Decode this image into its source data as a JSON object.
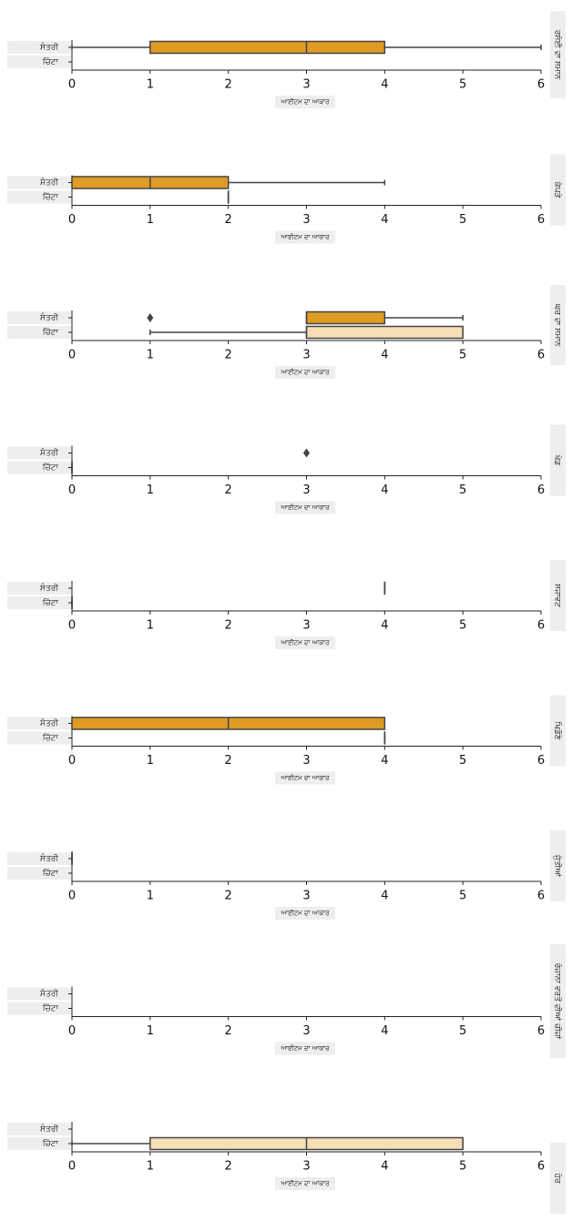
{
  "chart_data": [
    {
      "type": "box",
      "title": "ਰਸੋਈ ਦਾ ਸਮਾਨ",
      "categories": [
        "ਸੰਤਰੀ",
        "ਚਿੱਟਾ"
      ],
      "colors": [
        "#e09b24",
        "#f5dfb6"
      ],
      "xlabel": "ਆਈਟਮ ਦਾ ਆਕਾਰ",
      "xlim": [
        0,
        6
      ],
      "xticks": [
        0,
        1,
        2,
        3,
        4,
        5,
        6
      ],
      "boxes": [
        {
          "min": 0,
          "q1": 1,
          "median": 3,
          "q3": 4,
          "max": 6,
          "outliers": []
        },
        null
      ]
    },
    {
      "type": "box",
      "title": "ਕੱਪੜੇ",
      "categories": [
        "ਸੰਤਰੀ",
        "ਚਿੱਟਾ"
      ],
      "colors": [
        "#e09b24",
        "#f5dfb6"
      ],
      "xlabel": "ਆਈਟਮ ਦਾ ਆਕਾਰ",
      "xlim": [
        0,
        6
      ],
      "xticks": [
        0,
        1,
        2,
        3,
        4,
        5,
        6
      ],
      "boxes": [
        {
          "min": 0,
          "q1": 0,
          "median": 1,
          "q3": 2,
          "max": 4,
          "outliers": []
        },
        {
          "min": 2,
          "q1": 2,
          "median": 2,
          "q3": 2,
          "max": 2,
          "outliers": []
        }
      ]
    },
    {
      "type": "box",
      "title": "ਘਰ ਦਾ ਸਮਾਨ",
      "categories": [
        "ਸੰਤਰੀ",
        "ਚਿੱਟਾ"
      ],
      "colors": [
        "#e09b24",
        "#f5dfb6"
      ],
      "xlabel": "ਆਈਟਮ ਦਾ ਆਕਾਰ",
      "xlim": [
        0,
        6
      ],
      "xticks": [
        0,
        1,
        2,
        3,
        4,
        5,
        6
      ],
      "boxes": [
        {
          "min": 3,
          "q1": 3,
          "median": 3,
          "q3": 4,
          "max": 5,
          "outliers": [
            1
          ]
        },
        {
          "min": 1,
          "q1": 3,
          "median": 3,
          "q3": 5,
          "max": 5,
          "outliers": []
        }
      ]
    },
    {
      "type": "box",
      "title": "ਖੇਡ",
      "categories": [
        "ਸੰਤਰੀ",
        "ਚਿੱਟਾ"
      ],
      "colors": [
        "#e09b24",
        "#f5dfb6"
      ],
      "xlabel": "ਆਈਟਮ ਦਾ ਆਕਾਰ",
      "xlim": [
        0,
        6
      ],
      "xticks": [
        0,
        1,
        2,
        3,
        4,
        5,
        6
      ],
      "boxes": [
        {
          "outliers": [
            3
          ]
        },
        {
          "min": 0,
          "q1": 0,
          "median": 0,
          "q3": 0,
          "max": 0,
          "outliers": []
        }
      ]
    },
    {
      "type": "box",
      "title": "ਸਜਾਵਟ",
      "categories": [
        "ਸੰਤਰੀ",
        "ਚਿੱਟਾ"
      ],
      "colors": [
        "#e09b24",
        "#f5dfb6"
      ],
      "xlabel": "ਆਈਟਮ ਦਾ ਆਕਾਰ",
      "xlim": [
        0,
        6
      ],
      "xticks": [
        0,
        1,
        2,
        3,
        4,
        5,
        6
      ],
      "boxes": [
        {
          "min": 4,
          "q1": 4,
          "median": 4,
          "q3": 4,
          "max": 4,
          "outliers": []
        },
        {
          "min": 0,
          "q1": 0,
          "median": 0,
          "q3": 0,
          "max": 0,
          "outliers": []
        }
      ]
    },
    {
      "type": "box",
      "title": "ਖਿਡੌਣੇ",
      "categories": [
        "ਸੰਤਰੀ",
        "ਚਿੱਟਾ"
      ],
      "colors": [
        "#e09b24",
        "#f5dfb6"
      ],
      "xlabel": "ਆਈਟਮ ਦਾ ਆਕਾਰ",
      "xlim": [
        0,
        6
      ],
      "xticks": [
        0,
        1,
        2,
        3,
        4,
        5,
        6
      ],
      "boxes": [
        {
          "min": 0,
          "q1": 0,
          "median": 2,
          "q3": 4,
          "max": 4,
          "outliers": []
        },
        {
          "min": 4,
          "q1": 4,
          "median": 4,
          "q3": 4,
          "max": 4,
          "outliers": []
        }
      ]
    },
    {
      "type": "box",
      "title": "ਜੁੱਤੀਆਂ",
      "categories": [
        "ਸੰਤਰੀ",
        "ਚਿੱਟਾ"
      ],
      "colors": [
        "#e09b24",
        "#f5dfb6"
      ],
      "xlabel": "ਆਈਟਮ ਦਾ ਆਕਾਰ",
      "xlim": [
        0,
        6
      ],
      "xticks": [
        0,
        1,
        2,
        3,
        4,
        5,
        6
      ],
      "boxes": [
        {
          "min": 0,
          "q1": 0,
          "median": 0,
          "q3": 0,
          "max": 0,
          "outliers": []
        },
        null
      ]
    },
    {
      "type": "box",
      "title": "ਰੋਜ਼ਾਨਾ ਵਰਤੋਂ ਦੀਆਂ ਚੀਜ਼ਾਂ",
      "categories": [
        "ਸੰਤਰੀ",
        "ਚਿੱਟਾ"
      ],
      "colors": [
        "#e09b24",
        "#f5dfb6"
      ],
      "xlabel": "ਆਈਟਮ ਦਾ ਆਕਾਰ",
      "xlim": [
        0,
        6
      ],
      "xticks": [
        0,
        1,
        2,
        3,
        4,
        5,
        6
      ],
      "boxes": [
        null,
        null
      ]
    },
    {
      "type": "box",
      "title": "ਹੋਰ",
      "categories": [
        "ਸੰਤਰੀ",
        "ਚਿੱਟਾ"
      ],
      "colors": [
        "#e09b24",
        "#f5dfb6"
      ],
      "xlabel": "ਆਈਟਮ ਦਾ ਆਕਾਰ",
      "xlim": [
        0,
        6
      ],
      "xticks": [
        0,
        1,
        2,
        3,
        4,
        5,
        6
      ],
      "boxes": [
        null,
        {
          "min": 0,
          "q1": 1,
          "median": 3,
          "q3": 5,
          "max": 5,
          "outliers": []
        }
      ]
    }
  ]
}
